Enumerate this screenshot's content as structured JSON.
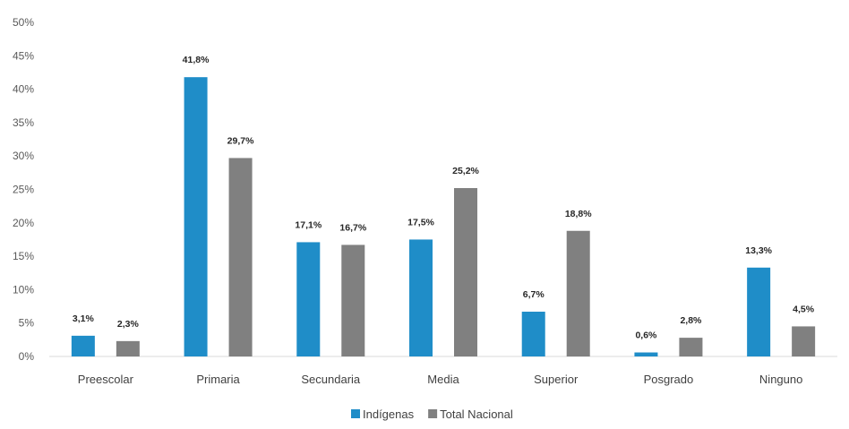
{
  "chart_data": {
    "type": "bar",
    "categories": [
      "Preescolar",
      "Primaria",
      "Secundaria",
      "Media",
      "Superior",
      "Posgrado",
      "Ninguno"
    ],
    "series": [
      {
        "name": "Indígenas",
        "color": "#1f8dc8",
        "values": [
          3.1,
          41.8,
          17.1,
          17.5,
          6.7,
          0.6,
          13.3
        ],
        "labels": [
          "3,1%",
          "41,8%",
          "17,1%",
          "17,5%",
          "6,7%",
          "0,6%",
          "13,3%"
        ]
      },
      {
        "name": "Total Nacional",
        "color": "#808080",
        "values": [
          2.3,
          29.7,
          16.7,
          25.2,
          18.8,
          2.8,
          4.5
        ],
        "labels": [
          "2,3%",
          "29,7%",
          "16,7%",
          "25,2%",
          "18,8%",
          "2,8%",
          "4,5%"
        ]
      }
    ],
    "yticks": [
      0,
      5,
      10,
      15,
      20,
      25,
      30,
      35,
      40,
      45,
      50
    ],
    "ytick_labels": [
      "0%",
      "5%",
      "10%",
      "15%",
      "20%",
      "25%",
      "30%",
      "35%",
      "40%",
      "45%",
      "50%"
    ],
    "ylim": [
      0,
      50
    ],
    "grid": false,
    "legend_position": "bottom-center",
    "title": "",
    "xlabel": "",
    "ylabel": ""
  }
}
